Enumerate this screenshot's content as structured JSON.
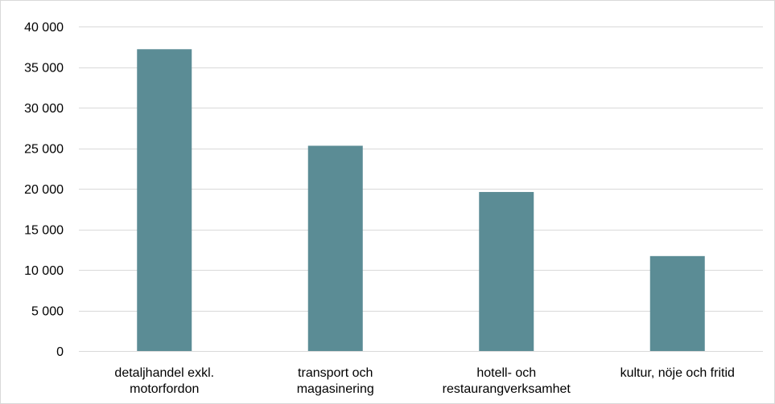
{
  "chart_data": {
    "type": "bar",
    "title": "",
    "xlabel": "",
    "ylabel": "",
    "categories": [
      [
        "detaljhandel exkl.",
        "motorfordon"
      ],
      [
        "transport och",
        "magasinering"
      ],
      [
        "hotell- och",
        "restaurangverksamhet"
      ],
      [
        "kultur, nöje och fritid"
      ]
    ],
    "values": [
      37200,
      25300,
      19600,
      11700
    ],
    "ylim": [
      0,
      40000
    ],
    "yticks": [
      0,
      5000,
      10000,
      15000,
      20000,
      25000,
      30000,
      35000,
      40000
    ],
    "ytick_labels": [
      "0",
      "5 000",
      "10 000",
      "15 000",
      "20 000",
      "25 000",
      "30 000",
      "35 000",
      "40 000"
    ],
    "grid": true,
    "legend": "none",
    "colors": {
      "bar": "#5b8c95",
      "grid": "#d9d9d9",
      "axis": "#d9d9d9",
      "text": "#000000"
    }
  }
}
